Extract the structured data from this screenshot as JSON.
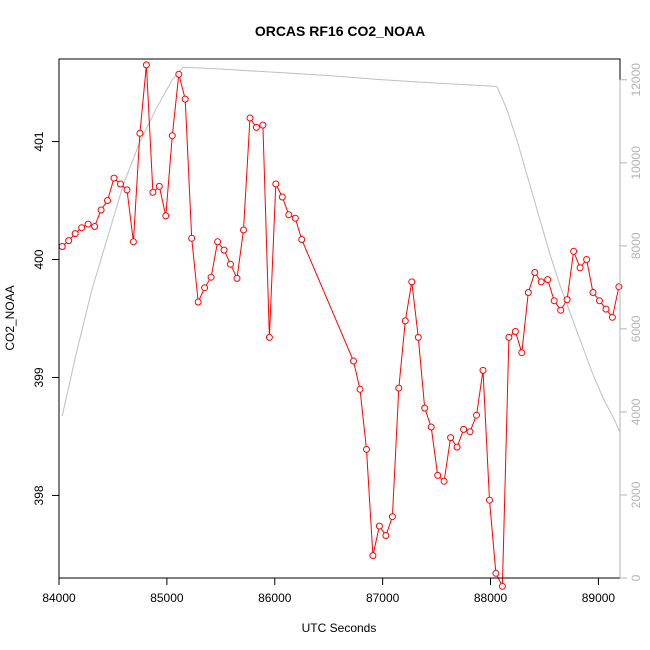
{
  "chart_data": {
    "type": "line",
    "title": "ORCAS RF16 CO2_NOAA",
    "xlabel": "UTC Seconds",
    "ylabel": "CO2_NOAA",
    "xlim": [
      84000,
      89200
    ],
    "ylim": [
      397.3,
      401.7
    ],
    "x_ticks": [
      84000,
      85000,
      86000,
      87000,
      88000,
      89000
    ],
    "y_ticks": [
      398,
      399,
      400,
      401
    ],
    "y2lim": [
      0,
      12500
    ],
    "y2_ticks": [
      0,
      2000,
      4000,
      6000,
      8000,
      10000,
      12000
    ],
    "colors": {
      "primary": "#ff0000",
      "secondary": "#bebebe",
      "axis": "#000000",
      "axis2_labels": "#b3b3b3"
    },
    "series": [
      {
        "axis": "left",
        "style": "line-with-open-circles",
        "color": "#ff0000",
        "x": [
          84030,
          84090,
          84150,
          84210,
          84270,
          84330,
          84390,
          84450,
          84510,
          84570,
          84630,
          84690,
          84750,
          84810,
          84870,
          84930,
          84990,
          85050,
          85110,
          85170,
          85230,
          85290,
          85350,
          85410,
          85470,
          85530,
          85590,
          85650,
          85710,
          85770,
          85830,
          85890,
          85950,
          86010,
          86070,
          86130,
          86190,
          86250,
          86730,
          86790,
          86850,
          86910,
          86970,
          87030,
          87090,
          87150,
          87210,
          87270,
          87330,
          87390,
          87450,
          87510,
          87570,
          87630,
          87690,
          87750,
          87810,
          87870,
          87930,
          87990,
          88050,
          88110,
          88170,
          88230,
          88290,
          88350,
          88410,
          88470,
          88530,
          88590,
          88650,
          88710,
          88770,
          88830,
          88890,
          88950,
          89010,
          89070,
          89130,
          89190
        ],
        "y": [
          400.11,
          400.16,
          400.22,
          400.27,
          400.3,
          400.28,
          400.42,
          400.5,
          400.69,
          400.64,
          400.59,
          400.15,
          401.07,
          401.65,
          400.57,
          400.62,
          400.37,
          401.05,
          401.57,
          401.36,
          400.18,
          399.64,
          399.76,
          399.85,
          400.15,
          400.08,
          399.96,
          399.84,
          400.25,
          401.2,
          401.12,
          401.14,
          399.34,
          400.64,
          400.53,
          400.38,
          400.35,
          400.17,
          399.14,
          398.9,
          398.39,
          397.49,
          397.74,
          397.66,
          397.82,
          398.91,
          399.48,
          399.81,
          399.34,
          398.74,
          398.58,
          398.17,
          398.12,
          398.49,
          398.41,
          398.56,
          398.54,
          398.68,
          399.06,
          397.96,
          397.34,
          397.23,
          399.34,
          399.39,
          399.21,
          399.72,
          399.89,
          399.81,
          399.83,
          399.65,
          399.57,
          399.66,
          400.07,
          399.93,
          400.0,
          399.72,
          399.65,
          399.58,
          399.51,
          399.77
        ]
      },
      {
        "axis": "right",
        "style": "line",
        "color": "#bebebe",
        "x": [
          84030,
          84150,
          84300,
          84450,
          84600,
          84750,
          84900,
          85050,
          85150,
          85500,
          86000,
          86500,
          87000,
          87500,
          88000,
          88060,
          88150,
          88250,
          88350,
          88450,
          88550,
          88650,
          88750,
          88850,
          88950,
          89050,
          89150,
          89200
        ],
        "y": [
          3900,
          5300,
          6900,
          8200,
          9500,
          10500,
          11300,
          12000,
          12300,
          12260,
          12180,
          12100,
          12000,
          11920,
          11850,
          11830,
          11300,
          10500,
          9600,
          8700,
          7800,
          7000,
          6300,
          5600,
          4900,
          4300,
          3800,
          3500
        ]
      }
    ]
  }
}
